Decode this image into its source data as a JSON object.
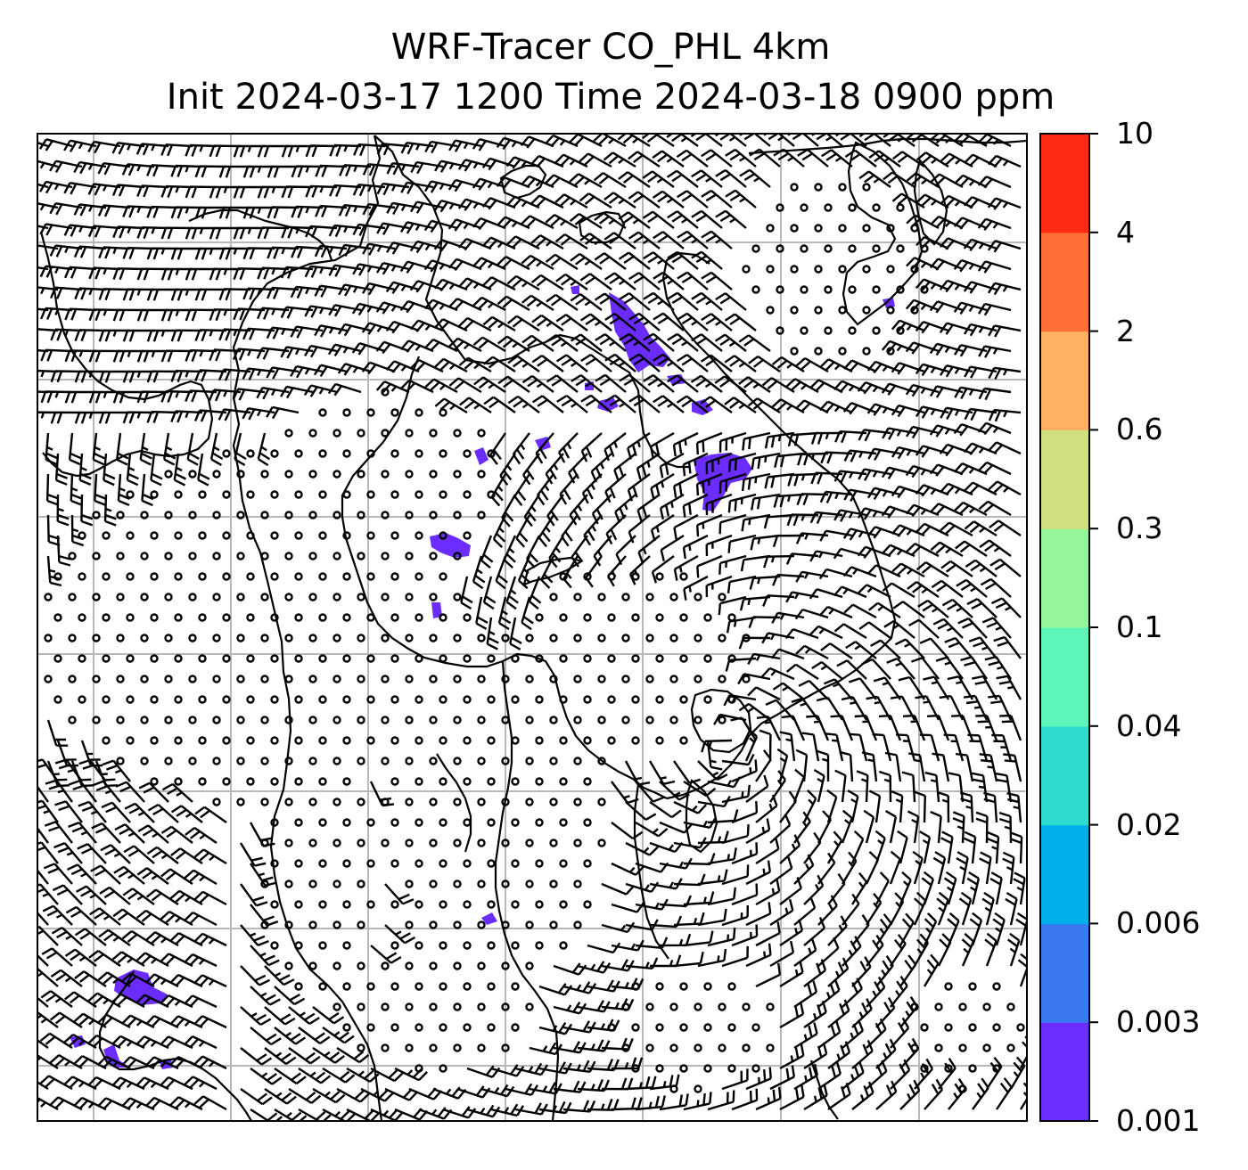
{
  "title": {
    "line1": "WRF-Tracer CO_PHL 4km",
    "line2": "Init 2024-03-17 1200 Time 2024-03-18 0900 ppm"
  },
  "colorbar": {
    "levels": [
      "0.001",
      "0.003",
      "0.006",
      "0.02",
      "0.04",
      "0.1",
      "0.3",
      "0.6",
      "2",
      "4",
      "10"
    ],
    "colors": [
      "#6a2cff",
      "#3a78f0",
      "#00b0e8",
      "#2edcd0",
      "#5ef5b8",
      "#96f59a",
      "#cfe07e",
      "#ffb062",
      "#ff7038",
      "#ff2a14"
    ]
  },
  "map": {
    "gridlines": true,
    "tracer_color": "#6a2cff",
    "coast_color": "#000000",
    "grid_color": "#b8b8b8"
  }
}
